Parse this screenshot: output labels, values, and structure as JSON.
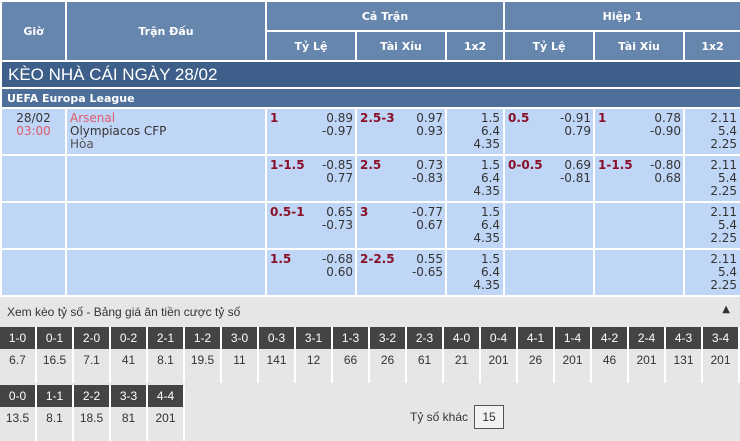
{
  "header": {
    "gio": "Giờ",
    "tran_dau": "Trận Đấu",
    "ca_tran": "Cả Trận",
    "hiep1": "Hiệp 1",
    "ty_le": "Tỷ Lệ",
    "tai_xiu": "Tài Xỉu",
    "x12": "1x2"
  },
  "title": "KÈO NHÀ CÁI NGÀY 28/02",
  "league": "UEFA Europa League",
  "match": {
    "date": "28/02",
    "time": "03:00",
    "home": "Arsenal",
    "away": "Olympiacos CFP",
    "draw": "Hòa"
  },
  "rows": [
    {
      "ft_hdp": "1",
      "ft_hdp_o": [
        "0.89",
        "-0.97"
      ],
      "ft_ou": "2.5-3",
      "ft_ou_o": [
        "0.97",
        "0.93"
      ],
      "ft_1x2": [
        "1.5",
        "6.4",
        "4.35"
      ],
      "h1_hdp": "0.5",
      "h1_hdp_o": [
        "-0.91",
        "0.79"
      ],
      "h1_ou": "1",
      "h1_ou_o": [
        "0.78",
        "-0.90"
      ],
      "h1_1x2": [
        "2.11",
        "5.4",
        "2.25"
      ]
    },
    {
      "ft_hdp": "1-1.5",
      "ft_hdp_o": [
        "-0.85",
        "0.77"
      ],
      "ft_ou": "2.5",
      "ft_ou_o": [
        "0.73",
        "-0.83"
      ],
      "ft_1x2": [
        "1.5",
        "6.4",
        "4.35"
      ],
      "h1_hdp": "0-0.5",
      "h1_hdp_o": [
        "0.69",
        "-0.81"
      ],
      "h1_ou": "1-1.5",
      "h1_ou_o": [
        "-0.80",
        "0.68"
      ],
      "h1_1x2": [
        "2.11",
        "5.4",
        "2.25"
      ]
    },
    {
      "ft_hdp": "0.5-1",
      "ft_hdp_o": [
        "0.65",
        "-0.73"
      ],
      "ft_ou": "3",
      "ft_ou_o": [
        "-0.77",
        "0.67"
      ],
      "ft_1x2": [
        "1.5",
        "6.4",
        "4.35"
      ],
      "h1_hdp": "",
      "h1_hdp_o": [
        "",
        ""
      ],
      "h1_ou": "",
      "h1_ou_o": [
        "",
        ""
      ],
      "h1_1x2": [
        "2.11",
        "5.4",
        "2.25"
      ]
    },
    {
      "ft_hdp": "1.5",
      "ft_hdp_o": [
        "-0.68",
        "0.60"
      ],
      "ft_ou": "2-2.5",
      "ft_ou_o": [
        "0.55",
        "-0.65"
      ],
      "ft_1x2": [
        "1.5",
        "6.4",
        "4.35"
      ],
      "h1_hdp": "",
      "h1_hdp_o": [
        "",
        ""
      ],
      "h1_ou": "",
      "h1_ou_o": [
        "",
        ""
      ],
      "h1_1x2": [
        "2.11",
        "5.4",
        "2.25"
      ]
    }
  ],
  "correct_score": {
    "title": "Xem kèo tỷ số - Bảng giá ăn tiền cược tỷ số",
    "collapse_icon": "triangle-up-icon",
    "row1": [
      [
        "1-0",
        "6.7"
      ],
      [
        "0-1",
        "16.5"
      ],
      [
        "2-0",
        "7.1"
      ],
      [
        "0-2",
        "41"
      ],
      [
        "2-1",
        "8.1"
      ],
      [
        "1-2",
        "19.5"
      ],
      [
        "3-0",
        "11"
      ],
      [
        "0-3",
        "141"
      ],
      [
        "3-1",
        "12"
      ],
      [
        "1-3",
        "66"
      ],
      [
        "3-2",
        "26"
      ],
      [
        "2-3",
        "61"
      ],
      [
        "4-0",
        "21"
      ],
      [
        "0-4",
        "201"
      ],
      [
        "4-1",
        "26"
      ],
      [
        "1-4",
        "201"
      ],
      [
        "4-2",
        "46"
      ],
      [
        "2-4",
        "201"
      ],
      [
        "4-3",
        "131"
      ],
      [
        "3-4",
        "201"
      ]
    ],
    "row2": [
      [
        "0-0",
        "13.5"
      ],
      [
        "1-1",
        "8.1"
      ],
      [
        "2-2",
        "18.5"
      ],
      [
        "3-3",
        "81"
      ],
      [
        "4-4",
        "201"
      ]
    ],
    "other_label": "Tỷ số khác",
    "other_value": "15"
  },
  "colors": {
    "header": "#6786ad",
    "title_bar": "#3e5f8a",
    "row_bg": "#c0d6f6",
    "handicap": "#8a1028",
    "home": "#e05b6b",
    "score_key": "#444444"
  }
}
